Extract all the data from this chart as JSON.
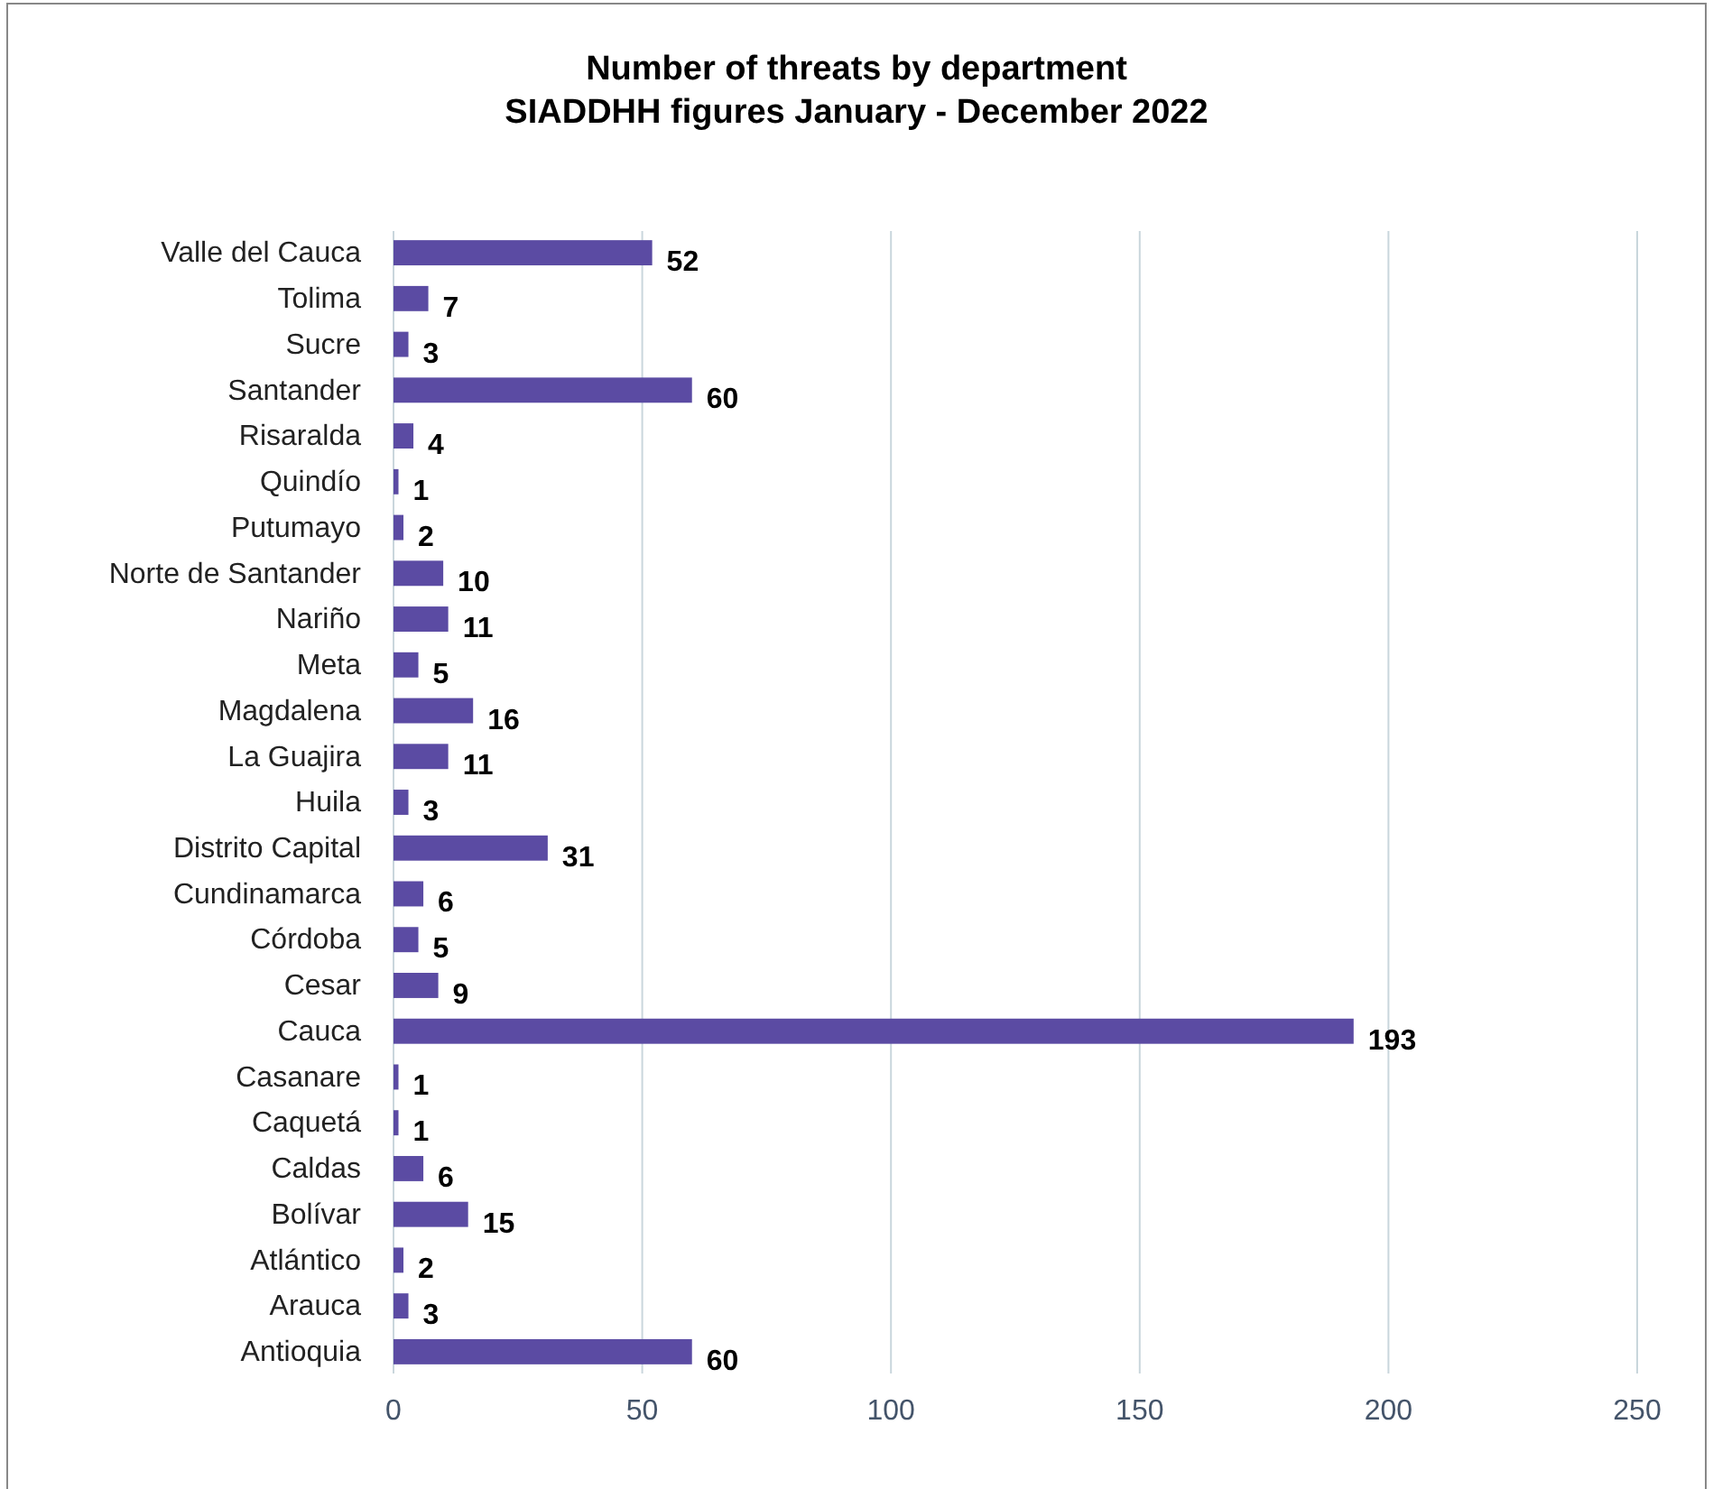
{
  "chart_data": {
    "type": "bar",
    "orientation": "horizontal",
    "title": "Number of threats by department",
    "subtitle": "SIADDHH figures January - December 2022",
    "categories": [
      "Valle del Cauca",
      "Tolima",
      "Sucre",
      "Santander",
      "Risaralda",
      "Quindío",
      "Putumayo",
      "Norte de Santander",
      "Nariño",
      "Meta",
      "Magdalena",
      "La Guajira",
      "Huila",
      "Distrito Capital",
      "Cundinamarca",
      "Córdoba",
      "Cesar",
      "Cauca",
      "Casanare",
      "Caquetá",
      "Caldas",
      "Bolívar",
      "Atlántico",
      "Arauca",
      "Antioquia"
    ],
    "values": [
      52,
      7,
      3,
      60,
      4,
      1,
      2,
      10,
      11,
      5,
      16,
      11,
      3,
      31,
      6,
      5,
      9,
      193,
      1,
      1,
      6,
      15,
      2,
      3,
      60
    ],
    "color": "#5b4ba3",
    "xlim": [
      0,
      250
    ],
    "xticks": [
      0,
      50,
      100,
      150,
      200,
      250
    ],
    "grid": "x",
    "data_labels": true
  }
}
